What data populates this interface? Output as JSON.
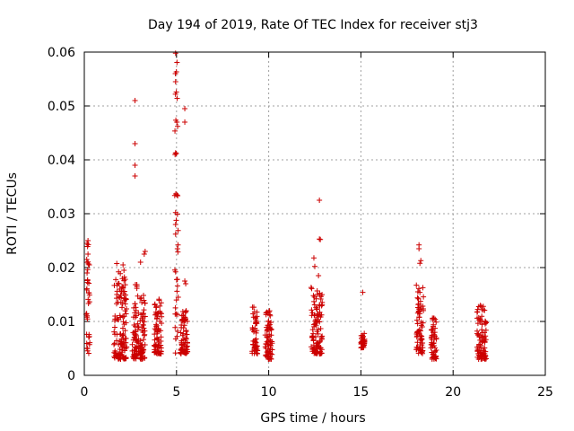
{
  "chart_data": {
    "type": "scatter",
    "title": "Day 194 of 2019, Rate Of TEC Index for receiver stj3",
    "xlabel": "GPS time / hours",
    "ylabel": "ROTI / TECUs",
    "xlim": [
      0,
      25
    ],
    "ylim": [
      0,
      0.06
    ],
    "x_ticks": [
      0,
      5,
      10,
      15,
      20,
      25
    ],
    "x_tick_labels": [
      "0",
      "5",
      "10",
      "15",
      "20",
      "25"
    ],
    "y_ticks": [
      0,
      0.01,
      0.02,
      0.03,
      0.04,
      0.05,
      0.06
    ],
    "y_tick_labels": [
      "0",
      "0.01",
      "0.02",
      "0.03",
      "0.04",
      "0.05",
      "0.06"
    ],
    "grid": true,
    "legend": "none",
    "marker": "+",
    "series": [
      {
        "name": "ROTI",
        "color": "#cc0000",
        "clusters": [
          {
            "x": [
              0.1,
              0.3
            ],
            "y": [
              0.004,
              0.025
            ]
          },
          {
            "x": [
              1.6,
              2.3
            ],
            "y": [
              0.003,
              0.021
            ]
          },
          {
            "x": [
              2.6,
              3.3
            ],
            "y": [
              0.003,
              0.017
            ]
          },
          {
            "x": [
              3.8,
              4.2
            ],
            "y": [
              0.004,
              0.015
            ]
          },
          {
            "x": [
              4.9,
              5.1
            ],
            "y": [
              0.004,
              0.06
            ]
          },
          {
            "x": [
              5.2,
              5.6
            ],
            "y": [
              0.004,
              0.012
            ]
          },
          {
            "x": [
              9.1,
              9.4
            ],
            "y": [
              0.004,
              0.013
            ]
          },
          {
            "x": [
              9.8,
              10.2
            ],
            "y": [
              0.003,
              0.012
            ]
          },
          {
            "x": [
              12.3,
              12.9
            ],
            "y": [
              0.004,
              0.017
            ]
          },
          {
            "x": [
              15.0,
              15.2
            ],
            "y": [
              0.005,
              0.008
            ]
          },
          {
            "x": [
              18.0,
              18.4
            ],
            "y": [
              0.004,
              0.017
            ]
          },
          {
            "x": [
              18.8,
              19.1
            ],
            "y": [
              0.003,
              0.011
            ]
          },
          {
            "x": [
              21.3,
              21.8
            ],
            "y": [
              0.003,
              0.013
            ]
          }
        ],
        "outliers": [
          {
            "x": 0.15,
            "y": 0.0245
          },
          {
            "x": 0.2,
            "y": 0.025
          },
          {
            "x": 0.2,
            "y": 0.0225
          },
          {
            "x": 0.15,
            "y": 0.019
          },
          {
            "x": 2.1,
            "y": 0.0205
          },
          {
            "x": 2.15,
            "y": 0.0195
          },
          {
            "x": 2.75,
            "y": 0.051
          },
          {
            "x": 2.75,
            "y": 0.043
          },
          {
            "x": 2.75,
            "y": 0.039
          },
          {
            "x": 2.75,
            "y": 0.037
          },
          {
            "x": 3.05,
            "y": 0.021
          },
          {
            "x": 3.3,
            "y": 0.023
          },
          {
            "x": 3.25,
            "y": 0.0225
          },
          {
            "x": 4.95,
            "y": 0.0598
          },
          {
            "x": 4.95,
            "y": 0.0545
          },
          {
            "x": 4.95,
            "y": 0.0413
          },
          {
            "x": 4.95,
            "y": 0.0302
          },
          {
            "x": 4.95,
            "y": 0.028
          },
          {
            "x": 4.95,
            "y": 0.0262
          },
          {
            "x": 4.95,
            "y": 0.0192
          },
          {
            "x": 5.05,
            "y": 0.0299
          },
          {
            "x": 5.05,
            "y": 0.0235
          },
          {
            "x": 5.45,
            "y": 0.0495
          },
          {
            "x": 5.45,
            "y": 0.047
          },
          {
            "x": 5.45,
            "y": 0.0175
          },
          {
            "x": 5.5,
            "y": 0.017
          },
          {
            "x": 12.45,
            "y": 0.0218
          },
          {
            "x": 12.5,
            "y": 0.0202
          },
          {
            "x": 12.75,
            "y": 0.0325
          },
          {
            "x": 12.75,
            "y": 0.0253
          },
          {
            "x": 12.8,
            "y": 0.0252
          },
          {
            "x": 12.7,
            "y": 0.0185
          },
          {
            "x": 15.1,
            "y": 0.0154
          },
          {
            "x": 18.15,
            "y": 0.0242
          },
          {
            "x": 18.15,
            "y": 0.0235
          },
          {
            "x": 18.25,
            "y": 0.0213
          },
          {
            "x": 18.2,
            "y": 0.0208
          }
        ]
      }
    ]
  }
}
